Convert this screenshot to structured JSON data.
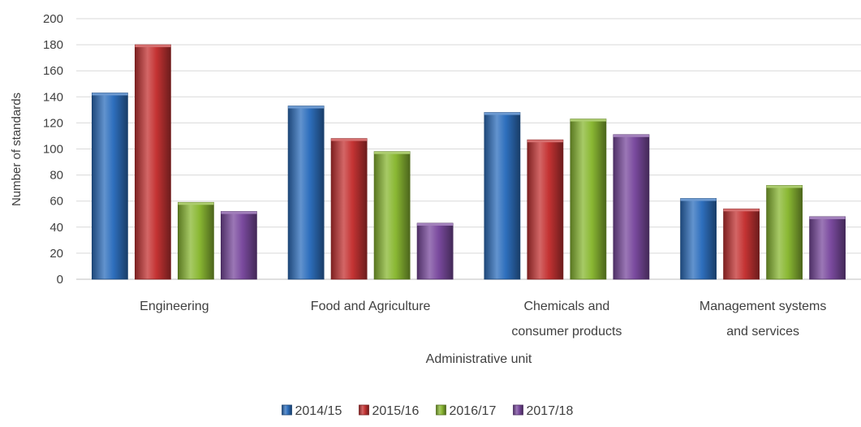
{
  "chart_data": {
    "type": "bar",
    "title": "",
    "xlabel": "Administrative unit",
    "ylabel": "Number of standards",
    "ylim": [
      0,
      200
    ],
    "yticks": [
      0,
      20,
      40,
      60,
      80,
      100,
      120,
      140,
      160,
      180,
      200
    ],
    "grid": true,
    "legend_position": "bottom",
    "categories": [
      [
        "Engineering"
      ],
      [
        "Food and Agriculture"
      ],
      [
        "Chemicals and",
        "consumer products"
      ],
      [
        "Management systems",
        "and services"
      ]
    ],
    "series": [
      {
        "name": "2014/15",
        "color": "#2e6fbd",
        "values": [
          143,
          133,
          128,
          62
        ]
      },
      {
        "name": "2015/16",
        "color": "#c43333",
        "values": [
          180,
          108,
          107,
          54
        ]
      },
      {
        "name": "2016/17",
        "color": "#8ab833",
        "values": [
          59,
          98,
          123,
          72
        ]
      },
      {
        "name": "2017/18",
        "color": "#7a4a9e",
        "values": [
          52,
          43,
          111,
          48
        ]
      }
    ]
  }
}
